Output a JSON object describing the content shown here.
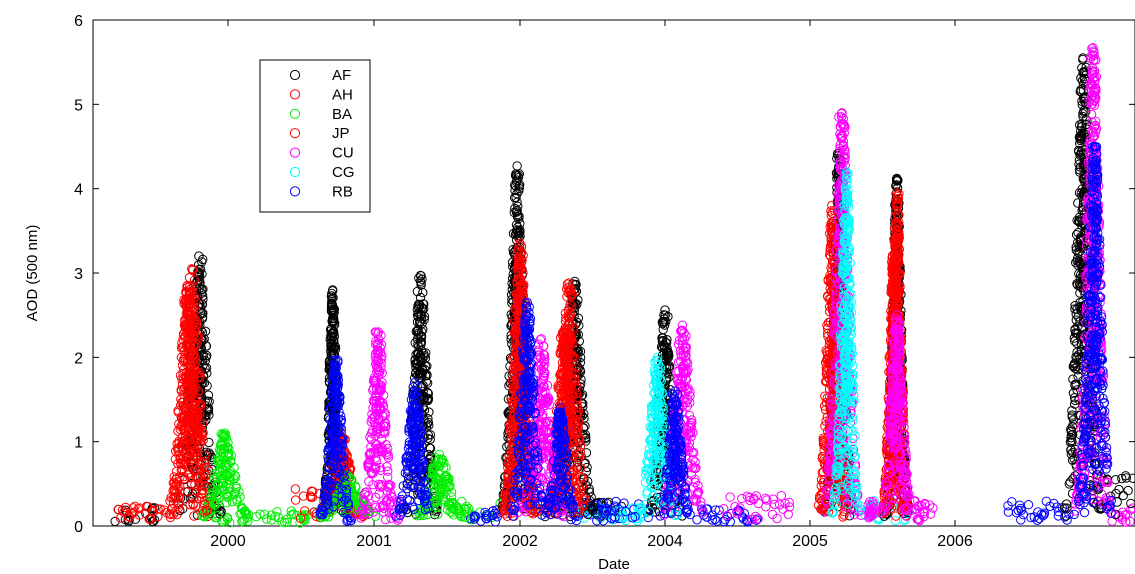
{
  "chart_data": {
    "type": "scatter",
    "title": "",
    "xlabel": "Date",
    "ylabel": "AOD (500 nm)",
    "ylim": [
      0,
      6
    ],
    "yticks": [
      0,
      1,
      2,
      3,
      4,
      5,
      6
    ],
    "x_tick_labels": [
      "2000",
      "2001",
      "2002",
      "2004",
      "2005",
      "2006"
    ],
    "legend_position": "top-left",
    "series": [
      {
        "name": "AF",
        "color": "#000000",
        "peaks": [
          {
            "label": "2000",
            "offset": -0.2,
            "max": 3.2,
            "width": 0.11
          },
          {
            "label": "2000",
            "offset": 0.72,
            "max": 2.8,
            "width": 0.05
          },
          {
            "label": "2001",
            "offset": 0.32,
            "max": 2.97,
            "width": 0.09
          },
          {
            "label": "2002",
            "offset": -0.02,
            "max": 4.27,
            "width": 0.08
          },
          {
            "label": "2004",
            "offset": -0.62,
            "max": 2.9,
            "width": 0.1
          },
          {
            "label": "2004",
            "offset": 0.0,
            "max": 2.56,
            "width": 0.08
          },
          {
            "label": "2005",
            "offset": 0.2,
            "max": 4.42,
            "width": 0.07
          },
          {
            "label": "2006",
            "offset": -0.4,
            "max": 4.12,
            "width": 0.06
          },
          {
            "label": "2006",
            "offset": 0.88,
            "max": 5.55,
            "width": 0.09
          }
        ]
      },
      {
        "name": "AH",
        "color": "#ff0000",
        "peaks": [
          {
            "label": "2000",
            "offset": -0.25,
            "max": 3.05,
            "width": 0.11
          },
          {
            "label": "2000",
            "offset": 0.78,
            "max": 1.1,
            "width": 0.12
          },
          {
            "label": "2002",
            "offset": 0.0,
            "max": 3.35,
            "width": 0.09
          },
          {
            "label": "2004",
            "offset": -0.66,
            "max": 2.88,
            "width": 0.1
          },
          {
            "label": "2005",
            "offset": 0.15,
            "max": 3.8,
            "width": 0.07
          },
          {
            "label": "2006",
            "offset": -0.4,
            "max": 3.95,
            "width": 0.06
          }
        ]
      },
      {
        "name": "BA",
        "color": "#00ee00",
        "peaks": [
          {
            "label": "2000",
            "offset": -0.02,
            "max": 1.1,
            "width": 0.12
          },
          {
            "label": "2000",
            "offset": 0.82,
            "max": 0.6,
            "width": 0.15
          },
          {
            "label": "2001",
            "offset": 0.45,
            "max": 0.85,
            "width": 0.13
          }
        ]
      },
      {
        "name": "JP",
        "color": "#ff0000",
        "peaks": [
          {
            "label": "2000",
            "offset": -0.28,
            "max": 2.85,
            "width": 0.1
          },
          {
            "label": "2002",
            "offset": 0.0,
            "max": 2.7,
            "width": 0.08
          },
          {
            "label": "2004",
            "offset": -0.7,
            "max": 2.3,
            "width": 0.09
          },
          {
            "label": "2005",
            "offset": 0.18,
            "max": 2.75,
            "width": 0.07
          },
          {
            "label": "2006",
            "offset": -0.42,
            "max": 3.4,
            "width": 0.06
          }
        ]
      },
      {
        "name": "CU",
        "color": "#ff00ff",
        "peaks": [
          {
            "label": "2001",
            "offset": 0.03,
            "max": 2.3,
            "width": 0.09
          },
          {
            "label": "2004",
            "offset": -0.85,
            "max": 2.22,
            "width": 0.12
          },
          {
            "label": "2004",
            "offset": 0.12,
            "max": 2.38,
            "width": 0.11
          },
          {
            "label": "2005",
            "offset": 0.22,
            "max": 4.9,
            "width": 0.09
          },
          {
            "label": "2006",
            "offset": -0.4,
            "max": 2.5,
            "width": 0.08
          },
          {
            "label": "2006",
            "offset": 0.95,
            "max": 5.67,
            "width": 0.09
          }
        ]
      },
      {
        "name": "CG",
        "color": "#00ffff",
        "peaks": [
          {
            "label": "2004",
            "offset": -0.05,
            "max": 2.0,
            "width": 0.1
          },
          {
            "label": "2005",
            "offset": 0.25,
            "max": 4.2,
            "width": 0.07
          }
        ]
      },
      {
        "name": "RB",
        "color": "#0000ff",
        "peaks": [
          {
            "label": "2000",
            "offset": 0.74,
            "max": 1.97,
            "width": 0.08
          },
          {
            "label": "2001",
            "offset": 0.28,
            "max": 1.7,
            "width": 0.09
          },
          {
            "label": "2002",
            "offset": 0.05,
            "max": 2.65,
            "width": 0.09
          },
          {
            "label": "2004",
            "offset": -0.72,
            "max": 1.4,
            "width": 0.08
          },
          {
            "label": "2004",
            "offset": 0.07,
            "max": 1.6,
            "width": 0.08
          },
          {
            "label": "2006",
            "offset": 0.96,
            "max": 4.5,
            "width": 0.09
          }
        ]
      }
    ],
    "background_segments": [
      {
        "name": "AF",
        "from": [
          "2000",
          -0.78
        ],
        "to": [
          "2000",
          -0.5
        ],
        "level": 0.15
      },
      {
        "name": "AH",
        "from": [
          "2000",
          -0.78
        ],
        "to": [
          "2000",
          -0.35
        ],
        "level": 0.2
      },
      {
        "name": "BA",
        "from": [
          "2000",
          -0.1
        ],
        "to": [
          "2000",
          0.6
        ],
        "level": 0.12
      },
      {
        "name": "AH",
        "from": [
          "2000",
          0.45
        ],
        "to": [
          "2000",
          0.7
        ],
        "level": 0.3
      },
      {
        "name": "BA",
        "from": [
          "2000",
          0.7
        ],
        "to": [
          "2001",
          -0.35
        ],
        "level": 0.3
      },
      {
        "name": "RB",
        "from": [
          "2000",
          0.85
        ],
        "to": [
          "2001",
          -0.2
        ],
        "level": 0.18
      },
      {
        "name": "CU",
        "from": [
          "2001",
          -0.15
        ],
        "to": [
          "2001",
          0.2
        ],
        "level": 0.2
      },
      {
        "name": "BA",
        "from": [
          "2001",
          0.5
        ],
        "to": [
          "2001",
          0.9
        ],
        "level": 0.2
      },
      {
        "name": "RB",
        "from": [
          "2001",
          0.6
        ],
        "to": [
          "2002",
          -0.15
        ],
        "level": 0.15
      },
      {
        "name": "RB",
        "from": [
          "2002",
          0.35
        ],
        "to": [
          "2002",
          0.9
        ],
        "level": 0.18
      },
      {
        "name": "AF",
        "from": [
          "2002",
          0.7
        ],
        "to": [
          "2004",
          -0.85
        ],
        "level": 0.2
      },
      {
        "name": "CG",
        "from": [
          "2004",
          -0.6
        ],
        "to": [
          "2004",
          -0.15
        ],
        "level": 0.15
      },
      {
        "name": "RB",
        "from": [
          "2004",
          -0.55
        ],
        "to": [
          "2004",
          -0.2
        ],
        "level": 0.2
      },
      {
        "name": "RB",
        "from": [
          "2004",
          0.2
        ],
        "to": [
          "2005",
          -0.35
        ],
        "level": 0.15
      },
      {
        "name": "CU",
        "from": [
          "2004",
          0.4
        ],
        "to": [
          "2005",
          -0.1
        ],
        "level": 0.25
      },
      {
        "name": "CG",
        "from": [
          "2005",
          0.3
        ],
        "to": [
          "2005",
          0.7
        ],
        "level": 0.2
      },
      {
        "name": "CU",
        "from": [
          "2005",
          0.4
        ],
        "to": [
          "2006",
          -0.55
        ],
        "level": 0.2
      },
      {
        "name": "CU",
        "from": [
          "2006",
          -0.3
        ],
        "to": [
          "2006",
          -0.15
        ],
        "level": 0.2
      },
      {
        "name": "RB",
        "from": [
          "2006",
          0.35
        ],
        "to": [
          "2006",
          0.8
        ],
        "level": 0.2
      },
      {
        "name": "CU",
        "from": [
          "2006",
          1.05
        ],
        "to": [
          "2006",
          1.3
        ],
        "level": 0.15
      },
      {
        "name": "AF",
        "from": [
          "2006",
          1.0
        ],
        "to": [
          "2006",
          1.25
        ],
        "level": 0.4
      }
    ]
  }
}
